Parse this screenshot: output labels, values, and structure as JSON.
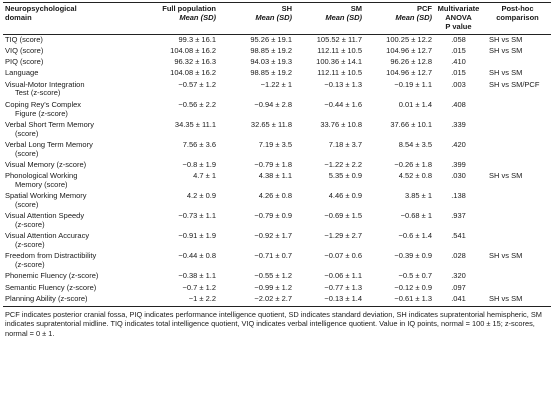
{
  "headers": [
    {
      "line1": "Neuropsychological",
      "line2": "domain"
    },
    {
      "line1": "Full population",
      "line2": "Mean (SD)"
    },
    {
      "line1": "SH",
      "line2": "Mean (SD)"
    },
    {
      "line1": "SM",
      "line2": "Mean (SD)"
    },
    {
      "line1": "PCF",
      "line2": "Mean (SD)"
    },
    {
      "line1": "Multivariate",
      "line2": "ANOVA",
      "line3": "P value"
    },
    {
      "line1": "Post-hoc",
      "line2": "comparison"
    }
  ],
  "rows": [
    {
      "domain": "TIQ (score)",
      "domain2": "",
      "full": "99.3 ± 16.1",
      "sh": "95.26 ± 19.1",
      "sm": "105.52 ± 11.7",
      "pcf": "100.25 ± 12.2",
      "p": ".058",
      "posthoc": "SH vs SM"
    },
    {
      "domain": "VIQ (score)",
      "domain2": "",
      "full": "104.08 ± 16.2",
      "sh": "98.85 ± 19.2",
      "sm": "112.11 ± 10.5",
      "pcf": "104.96 ± 12.7",
      "p": ".015",
      "posthoc": "SH vs SM"
    },
    {
      "domain": "PIQ (score)",
      "domain2": "",
      "full": "96.32 ± 16.3",
      "sh": "94.03 ± 19.3",
      "sm": "100.36 ± 14.1",
      "pcf": "96.26 ± 12.8",
      "p": ".410",
      "posthoc": ""
    },
    {
      "domain": "Language",
      "domain2": "",
      "full": "104.08 ± 16.2",
      "sh": "98.85 ± 19.2",
      "sm": "112.11 ± 10.5",
      "pcf": "104.96 ± 12.7",
      "p": ".015",
      "posthoc": "SH vs SM"
    },
    {
      "domain": "Visual-Motor Integration",
      "domain2": "Test (z-score)",
      "full": "−0.57 ± 1.2",
      "sh": "−1.22 ± 1",
      "sm": "−0.13 ± 1.3",
      "pcf": "−0.19 ± 1.1",
      "p": ".003",
      "posthoc": "SH vs SM/PCF"
    },
    {
      "domain": "Coping Rey's Complex",
      "domain2": "Figure (z-score)",
      "full": "−0.56 ± 2.2",
      "sh": "−0.94 ± 2.8",
      "sm": "−0.44 ± 1.6",
      "pcf": "0.01 ± 1.4",
      "p": ".408",
      "posthoc": ""
    },
    {
      "domain": "Verbal Short Term Memory",
      "domain2": "(score)",
      "full": "34.35 ± 11.1",
      "sh": "32.65 ± 11.8",
      "sm": "33.76 ± 10.8",
      "pcf": "37.66 ± 10.1",
      "p": ".339",
      "posthoc": ""
    },
    {
      "domain": "Verbal Long Term Memory",
      "domain2": "(score)",
      "full": "7.56 ± 3.6",
      "sh": "7.19 ± 3.5",
      "sm": "7.18 ± 3.7",
      "pcf": "8.54 ± 3.5",
      "p": ".420",
      "posthoc": ""
    },
    {
      "domain": "Visual Memory (z-score)",
      "domain2": "",
      "full": "−0.8 ± 1.9",
      "sh": "−0.79 ± 1.8",
      "sm": "−1.22 ± 2.2",
      "pcf": "−0.26 ± 1.8",
      "p": ".399",
      "posthoc": ""
    },
    {
      "domain": "Phonological Working",
      "domain2": "Memory (score)",
      "full": "4.7 ± 1",
      "sh": "4.38 ± 1.1",
      "sm": "5.35 ± 0.9",
      "pcf": "4.52 ± 0.8",
      "p": ".030",
      "posthoc": "SH vs SM"
    },
    {
      "domain": "Spatial Working Memory",
      "domain2": "(score)",
      "full": "4.2 ± 0.9",
      "sh": "4.26 ± 0.8",
      "sm": "4.46 ± 0.9",
      "pcf": "3.85 ± 1",
      "p": ".138",
      "posthoc": ""
    },
    {
      "domain": "Visual Attention Speedy",
      "domain2": "(z-score)",
      "full": "−0.73 ± 1.1",
      "sh": "−0.79 ± 0.9",
      "sm": "−0.69 ± 1.5",
      "pcf": "−0.68 ± 1",
      "p": ".937",
      "posthoc": ""
    },
    {
      "domain": "Visual Attention Accuracy",
      "domain2": "(z-score)",
      "full": "−0.91 ± 1.9",
      "sh": "−0.92 ± 1.7",
      "sm": "−1.29 ± 2.7",
      "pcf": "−0.6 ± 1.4",
      "p": ".541",
      "posthoc": ""
    },
    {
      "domain": "Freedom from Distractibility",
      "domain2": "(z-score)",
      "full": "−0.44 ± 0.8",
      "sh": "−0.71 ± 0.7",
      "sm": "−0.07 ± 0.6",
      "pcf": "−0.39 ± 0.9",
      "p": ".028",
      "posthoc": "SH vs SM"
    },
    {
      "domain": "Phonemic Fluency (z-score)",
      "domain2": "",
      "full": "−0.38 ± 1.1",
      "sh": "−0.55 ± 1.2",
      "sm": "−0.06 ± 1.1",
      "pcf": "−0.5 ± 0.7",
      "p": ".320",
      "posthoc": ""
    },
    {
      "domain": "Semantic Fluency (z-score)",
      "domain2": "",
      "full": "−0.7 ± 1.2",
      "sh": "−0.99 ± 1.2",
      "sm": "−0.77 ± 1.3",
      "pcf": "−0.12 ± 0.9",
      "p": ".097",
      "posthoc": ""
    },
    {
      "domain": "Planning Ability (z-score)",
      "domain2": "",
      "full": "−1 ± 2.2",
      "sh": "−2.02 ± 2.7",
      "sm": "−0.13 ± 1.4",
      "pcf": "−0.61 ± 1.3",
      "p": ".041",
      "posthoc": "SH vs SM"
    }
  ],
  "footnote": "PCF indicates posterior cranial fossa, PIQ indicates performance intelligence quotient, SD indicates standard deviation, SH indicates supratentorial hemispheric, SM indicates supratentorial midline. TIQ indicates total intelligence quotient, VIQ indicates verbal intelligence quotient. Value in IQ points, normal = 100 ± 15; z-scores, normal = 0 ± 1."
}
